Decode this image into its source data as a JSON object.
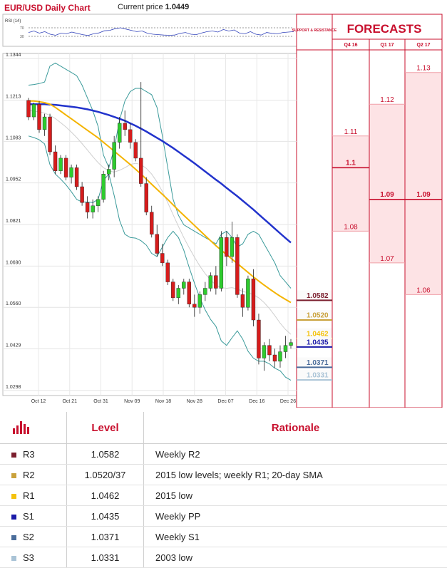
{
  "header": {
    "title": "EUR/USD Daily Chart",
    "price_prefix": "Current price",
    "price_value": "1.0449"
  },
  "colors": {
    "up": "#2ecc2e",
    "down": "#d61c1c",
    "sma_blue": "#2233cc",
    "sma_gold": "#f4b400",
    "bollinger": "#3a9a9a",
    "forecast_red": "#c8102e",
    "forecast_fill": "#fde3e5",
    "accent": "#c8102e"
  },
  "chart_data": [
    {
      "type": "candlestick",
      "title": "EUR/USD Daily Chart",
      "x_ticks": [
        "Oct 12",
        "Oct 21",
        "Oct 31",
        "Nov 09",
        "Nov 18",
        "Nov 28",
        "Dec 07",
        "Dec 16",
        "Dec 26"
      ],
      "y_ticks": [
        "1.1344",
        "1.1213",
        "1.1083",
        "1.0952",
        "1.0821",
        "1.0690",
        "1.0560",
        "1.0429",
        "1.0298"
      ],
      "ylim": [
        1.0282,
        1.136
      ],
      "candles": [
        {
          "o": 1.1212,
          "h": 1.122,
          "l": 1.115,
          "c": 1.116
        },
        {
          "o": 1.116,
          "h": 1.1205,
          "l": 1.115,
          "c": 1.12
        },
        {
          "o": 1.12,
          "h": 1.121,
          "l": 1.111,
          "c": 1.112
        },
        {
          "o": 1.112,
          "h": 1.117,
          "l": 1.11,
          "c": 1.116
        },
        {
          "o": 1.116,
          "h": 1.117,
          "l": 1.104,
          "c": 1.105
        },
        {
          "o": 1.105,
          "h": 1.107,
          "l": 1.098,
          "c": 1.099
        },
        {
          "o": 1.099,
          "h": 1.104,
          "l": 1.098,
          "c": 1.103
        },
        {
          "o": 1.103,
          "h": 1.104,
          "l": 1.096,
          "c": 1.097
        },
        {
          "o": 1.097,
          "h": 1.101,
          "l": 1.095,
          "c": 1.1
        },
        {
          "o": 1.1,
          "h": 1.101,
          "l": 1.093,
          "c": 1.094
        },
        {
          "o": 1.094,
          "h": 1.0955,
          "l": 1.088,
          "c": 1.089
        },
        {
          "o": 1.089,
          "h": 1.091,
          "l": 1.084,
          "c": 1.086
        },
        {
          "o": 1.086,
          "h": 1.09,
          "l": 1.084,
          "c": 1.088
        },
        {
          "o": 1.088,
          "h": 1.091,
          "l": 1.086,
          "c": 1.09
        },
        {
          "o": 1.09,
          "h": 1.099,
          "l": 1.089,
          "c": 1.098
        },
        {
          "o": 1.098,
          "h": 1.101,
          "l": 1.096,
          "c": 1.0995
        },
        {
          "o": 1.0995,
          "h": 1.11,
          "l": 1.097,
          "c": 1.108
        },
        {
          "o": 1.108,
          "h": 1.116,
          "l": 1.106,
          "c": 1.114
        },
        {
          "o": 1.114,
          "h": 1.118,
          "l": 1.11,
          "c": 1.112
        },
        {
          "o": 1.112,
          "h": 1.114,
          "l": 1.106,
          "c": 1.108
        },
        {
          "o": 1.108,
          "h": 1.109,
          "l": 1.102,
          "c": 1.103
        },
        {
          "o": 1.103,
          "h": 1.127,
          "l": 1.094,
          "c": 1.095
        },
        {
          "o": 1.095,
          "h": 1.097,
          "l": 1.085,
          "c": 1.086
        },
        {
          "o": 1.086,
          "h": 1.088,
          "l": 1.078,
          "c": 1.079
        },
        {
          "o": 1.079,
          "h": 1.082,
          "l": 1.072,
          "c": 1.073
        },
        {
          "o": 1.073,
          "h": 1.076,
          "l": 1.069,
          "c": 1.07
        },
        {
          "o": 1.07,
          "h": 1.071,
          "l": 1.063,
          "c": 1.064
        },
        {
          "o": 1.064,
          "h": 1.065,
          "l": 1.058,
          "c": 1.059
        },
        {
          "o": 1.059,
          "h": 1.063,
          "l": 1.057,
          "c": 1.062
        },
        {
          "o": 1.062,
          "h": 1.065,
          "l": 1.06,
          "c": 1.064
        },
        {
          "o": 1.064,
          "h": 1.065,
          "l": 1.056,
          "c": 1.057
        },
        {
          "o": 1.057,
          "h": 1.06,
          "l": 1.053,
          "c": 1.056
        },
        {
          "o": 1.056,
          "h": 1.061,
          "l": 1.054,
          "c": 1.06
        },
        {
          "o": 1.06,
          "h": 1.064,
          "l": 1.058,
          "c": 1.062
        },
        {
          "o": 1.062,
          "h": 1.067,
          "l": 1.061,
          "c": 1.066
        },
        {
          "o": 1.066,
          "h": 1.069,
          "l": 1.06,
          "c": 1.062
        },
        {
          "o": 1.062,
          "h": 1.08,
          "l": 1.061,
          "c": 1.078
        },
        {
          "o": 1.078,
          "h": 1.08,
          "l": 1.069,
          "c": 1.072
        },
        {
          "o": 1.072,
          "h": 1.083,
          "l": 1.07,
          "c": 1.078
        },
        {
          "o": 1.078,
          "h": 1.079,
          "l": 1.059,
          "c": 1.06
        },
        {
          "o": 1.06,
          "h": 1.062,
          "l": 1.053,
          "c": 1.056
        },
        {
          "o": 1.056,
          "h": 1.066,
          "l": 1.055,
          "c": 1.065
        },
        {
          "o": 1.065,
          "h": 1.068,
          "l": 1.05,
          "c": 1.052
        },
        {
          "o": 1.052,
          "h": 1.054,
          "l": 1.038,
          "c": 1.04
        },
        {
          "o": 1.04,
          "h": 1.045,
          "l": 1.036,
          "c": 1.044
        },
        {
          "o": 1.044,
          "h": 1.046,
          "l": 1.039,
          "c": 1.041
        },
        {
          "o": 1.041,
          "h": 1.043,
          "l": 1.037,
          "c": 1.039
        },
        {
          "o": 1.039,
          "h": 1.044,
          "l": 1.037,
          "c": 1.042
        },
        {
          "o": 1.042,
          "h": 1.047,
          "l": 1.04,
          "c": 1.044
        },
        {
          "o": 1.044,
          "h": 1.046,
          "l": 1.043,
          "c": 1.0449
        }
      ],
      "rsi": {
        "label": "RSI (14)",
        "levels": [
          "70",
          "30"
        ],
        "values": [
          48,
          55,
          45,
          52,
          40,
          35,
          45,
          42,
          50,
          44,
          38,
          34,
          42,
          46,
          56,
          58,
          66,
          70,
          64,
          58,
          52,
          55,
          44,
          40,
          38,
          36,
          35,
          36,
          44,
          48,
          40,
          38,
          46,
          52,
          55,
          50,
          62,
          55,
          60,
          45,
          42,
          52,
          40,
          36,
          48,
          44,
          42,
          48,
          50,
          52
        ]
      },
      "sma_blue": [
        1.12,
        1.12,
        1.12,
        1.12,
        1.1199,
        1.1198,
        1.1196,
        1.1194,
        1.1192,
        1.119,
        1.1187,
        1.1184,
        1.118,
        1.1176,
        1.1171,
        1.1166,
        1.116,
        1.1154,
        1.1148,
        1.114,
        1.1132,
        1.1123,
        1.1114,
        1.1104,
        1.1094,
        1.1084,
        1.1073,
        1.1062,
        1.105,
        1.1038,
        1.1026,
        1.1014,
        1.1001,
        1.0988,
        1.0975,
        1.0962,
        1.095,
        1.0936,
        1.0923,
        1.091,
        1.0896,
        1.0882,
        1.0868,
        1.0853,
        1.0838,
        1.0823,
        1.0808,
        1.0793,
        1.0778,
        1.0764
      ],
      "sma_gold": [
        1.121,
        1.121,
        1.1208,
        1.1205,
        1.12,
        1.119,
        1.1178,
        1.1166,
        1.1154,
        1.1142,
        1.113,
        1.1118,
        1.1106,
        1.1094,
        1.108,
        1.1066,
        1.1052,
        1.1038,
        1.1024,
        1.101,
        1.0995,
        1.098,
        1.0964,
        1.0948,
        1.0932,
        1.0916,
        1.09,
        1.0883,
        1.0866,
        1.085,
        1.0834,
        1.0818,
        1.0802,
        1.0786,
        1.077,
        1.0754,
        1.074,
        1.0726,
        1.0712,
        1.0698,
        1.0684,
        1.067,
        1.0656,
        1.0643,
        1.063,
        1.0618,
        1.0606,
        1.0595,
        1.0585,
        1.0575
      ],
      "bollinger_upper": [
        1.126,
        1.1262,
        1.1265,
        1.127,
        1.132,
        1.133,
        1.132,
        1.131,
        1.13,
        1.129,
        1.126,
        1.122,
        1.118,
        1.113,
        1.104,
        1.1,
        1.106,
        1.115,
        1.121,
        1.124,
        1.125,
        1.125,
        1.124,
        1.123,
        1.119,
        1.11,
        1.1,
        1.09,
        1.085,
        1.082,
        1.081,
        1.08,
        1.079,
        1.078,
        1.077,
        1.076,
        1.079,
        1.08,
        1.078,
        1.075,
        1.076,
        1.079,
        1.08,
        1.079,
        1.076,
        1.073,
        1.07,
        1.066,
        1.064,
        1.062
      ],
      "bollinger_mid": [
        1.118,
        1.1178,
        1.1176,
        1.1172,
        1.1165,
        1.1155,
        1.1142,
        1.1128,
        1.1112,
        1.1095,
        1.1076,
        1.1056,
        1.1035,
        1.1016,
        1.1,
        1.099,
        1.0986,
        1.0992,
        1.1,
        1.101,
        1.1014,
        1.101,
        1.0998,
        1.098,
        1.0955,
        1.0925,
        1.089,
        1.0852,
        1.0815,
        1.078,
        1.0748,
        1.0718,
        1.069,
        1.0666,
        1.0646,
        1.063,
        1.0622,
        1.062,
        1.0622,
        1.0618,
        1.061,
        1.0606,
        1.06,
        1.059,
        1.0575,
        1.0556,
        1.0534,
        1.051,
        1.049,
        1.0475
      ],
      "bollinger_lower": [
        1.11,
        1.1095,
        1.1088,
        1.1075,
        1.101,
        1.098,
        1.0964,
        1.0946,
        1.0924,
        1.09,
        1.0892,
        1.0892,
        1.089,
        1.09,
        1.096,
        1.098,
        1.0912,
        1.0834,
        1.079,
        1.078,
        1.0778,
        1.077,
        1.0756,
        1.073,
        1.072,
        1.075,
        1.078,
        1.08,
        1.078,
        1.074,
        1.0686,
        1.0636,
        1.059,
        1.0552,
        1.0522,
        1.05,
        1.0454,
        1.044,
        1.0464,
        1.0486,
        1.046,
        1.0422,
        1.04,
        1.039,
        1.039,
        1.0382,
        1.0368,
        1.036,
        1.034,
        1.033
      ]
    },
    {
      "type": "table",
      "title": "FORECASTS",
      "sr_label": "SUPPORT & RESISTANCE",
      "columns": [
        "Q4 16",
        "Q1 17",
        "Q2 17"
      ],
      "forecasts": [
        {
          "period": "Q4 16",
          "values": [
            "1.11",
            "1.1",
            "1.08"
          ],
          "median": "1.1",
          "range": [
            1.08,
            1.11
          ]
        },
        {
          "period": "Q1 17",
          "values": [
            "1.12",
            "1.09",
            "1.07"
          ],
          "median": "1.09",
          "range": [
            1.07,
            1.12
          ]
        },
        {
          "period": "Q2 17",
          "values": [
            "1.13",
            "1.09",
            "1.06"
          ],
          "median": "1.09",
          "range": [
            1.06,
            1.13
          ]
        }
      ],
      "levels": [
        {
          "name": "R3",
          "level": "1.0582",
          "value": 1.0582,
          "color": "#7b1f2e",
          "rationale": "Weekly R2"
        },
        {
          "name": "R2",
          "level": "1.0520/37",
          "value": 1.052,
          "color": "#c9a13b",
          "rationale": "2015 low levels; weekly R1; 20-day SMA",
          "chart_label": "1.0520"
        },
        {
          "name": "R1",
          "level": "1.0462",
          "value": 1.0462,
          "color": "#f4c20d",
          "rationale": "2015 low"
        },
        {
          "name": "S1",
          "level": "1.0435",
          "value": 1.0435,
          "color": "#1a1aa8",
          "rationale": "Weekly PP"
        },
        {
          "name": "S2",
          "level": "1.0371",
          "value": 1.0371,
          "color": "#4a6c9a",
          "rationale": "Weekly S1"
        },
        {
          "name": "S3",
          "level": "1.0331",
          "value": 1.0331,
          "color": "#a9c3d6",
          "rationale": "2003 low"
        }
      ]
    }
  ],
  "table": {
    "header_level": "Level",
    "header_rationale": "Rationale"
  }
}
